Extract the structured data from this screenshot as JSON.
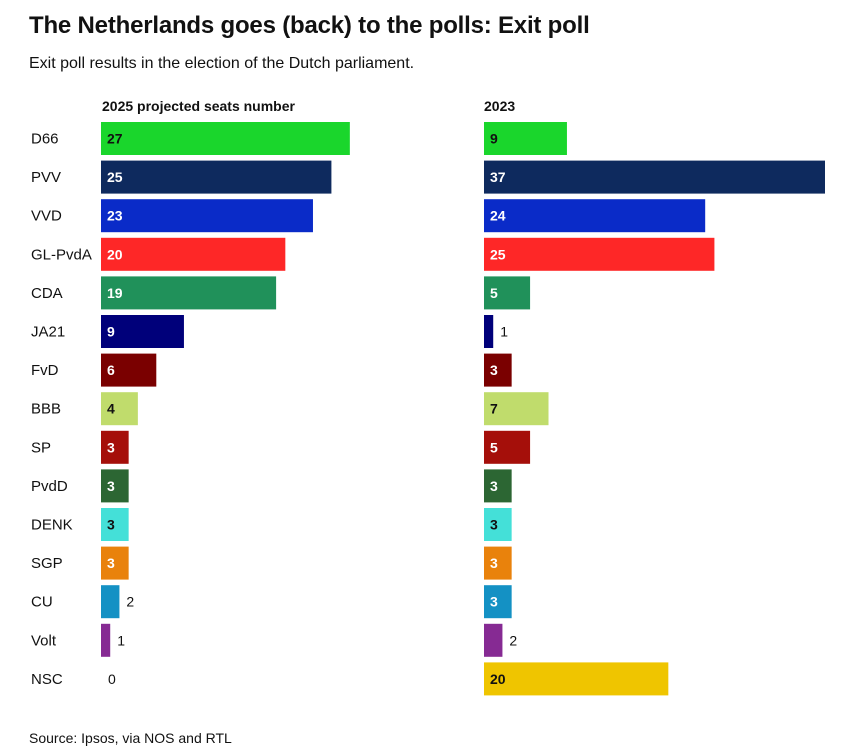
{
  "title": "The Netherlands goes (back) to the polls: Exit poll",
  "subtitle": "Exit poll results in the election of the Dutch parliament.",
  "source": "Source: Ipsos, via NOS and RTL",
  "chart_data": {
    "type": "bar",
    "orientation": "horizontal",
    "categories": [
      "D66",
      "PVV",
      "VVD",
      "GL-PvdA",
      "CDA",
      "JA21",
      "FvD",
      "BBB",
      "SP",
      "PvdD",
      "DENK",
      "SGP",
      "CU",
      "Volt",
      "NSC"
    ],
    "colors": [
      "#1ad62c",
      "#0e2a5e",
      "#0a2bc8",
      "#fe2727",
      "#20915a",
      "#00007a",
      "#7a0000",
      "#c0dc6c",
      "#a50f0a",
      "#2c6633",
      "#44e0d8",
      "#e9820c",
      "#1491c4",
      "#862a93",
      "#efc500"
    ],
    "label_colors": [
      "#111111",
      "#ffffff",
      "#ffffff",
      "#ffffff",
      "#ffffff",
      "#ffffff",
      "#ffffff",
      "#111111",
      "#ffffff",
      "#ffffff",
      "#111111",
      "#ffffff",
      "#ffffff",
      "#ffffff",
      "#111111"
    ],
    "series": [
      {
        "name": "2025 projected seats number",
        "values": [
          27,
          25,
          23,
          20,
          19,
          9,
          6,
          4,
          3,
          3,
          3,
          3,
          2,
          1,
          0
        ]
      },
      {
        "name": "2023",
        "values": [
          9,
          37,
          24,
          25,
          5,
          1,
          3,
          7,
          5,
          3,
          3,
          3,
          3,
          2,
          20
        ]
      }
    ],
    "xlim": [
      0,
      37
    ],
    "grid": false,
    "legend": "none"
  }
}
